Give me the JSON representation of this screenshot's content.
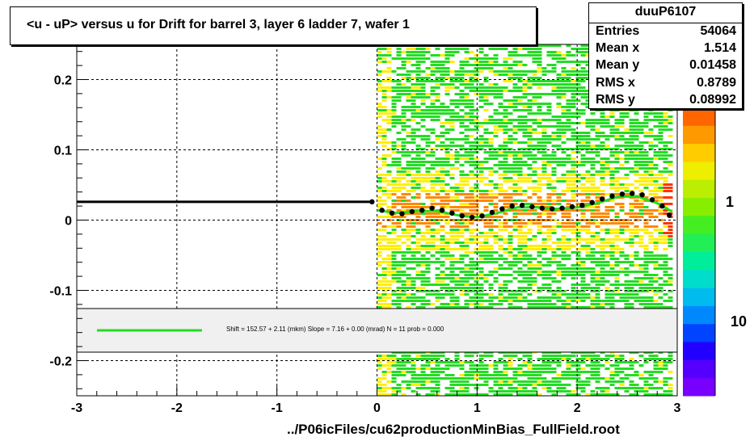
{
  "title": "<u - uP>       versus   u for Drift for barrel 3, layer 6 ladder 7, wafer 1",
  "stats": {
    "name": "duuP6107",
    "rows": [
      {
        "label": "Entries",
        "value": "54064"
      },
      {
        "label": "Mean x",
        "value": "1.514"
      },
      {
        "label": "Mean y",
        "value": "0.01458"
      },
      {
        "label": "RMS x",
        "value": "0.8789"
      },
      {
        "label": "RMS y",
        "value": "0.08992"
      }
    ]
  },
  "footer": "../P06icFiles/cu62productionMinBias_FullField.root",
  "fit_text": "Shift =    152.57 + 2.11 (mkm) Slope =     7.16 + 0.00 (mrad)  N = 11 prob = 0.000",
  "colors": {
    "frame": "#000000",
    "grid": "#000000",
    "profile": "#000000",
    "fit_line": "#22dd22",
    "fit_box_bg": "#f0f0f0",
    "hist_low": "#22dd22",
    "hist_mid": "#ffee00",
    "hist_high": "#ff8800",
    "hist_peak": "#ff3300"
  },
  "chart_data": {
    "type": "heatmap",
    "title": "<u - uP>       versus   u for Drift for barrel 3, layer 6 ladder 7, wafer 1",
    "xlabel": "",
    "ylabel": "",
    "xlim": [
      -3,
      3
    ],
    "ylim": [
      -0.25,
      0.25
    ],
    "x_ticks": [
      -3,
      -2,
      -1,
      0,
      1,
      2,
      3
    ],
    "y_ticks": [
      -0.2,
      -0.1,
      0,
      0.1,
      0.2
    ],
    "x_tick_labels": [
      "-3",
      "-2",
      "-1",
      "0",
      "1",
      "2",
      "3"
    ],
    "y_tick_labels": [
      "-0.2",
      "-0.1",
      "0",
      "0.1",
      "0.2"
    ],
    "grid": true,
    "heatmap_x_range": [
      0,
      2.95
    ],
    "colorbar_labels": [
      "1",
      "10"
    ],
    "profile_points": [
      {
        "x": -3.0,
        "y": 0.026
      },
      {
        "x": -0.05,
        "y": 0.026
      },
      {
        "x": 0.05,
        "y": 0.014
      },
      {
        "x": 0.15,
        "y": 0.01
      },
      {
        "x": 0.25,
        "y": 0.009
      },
      {
        "x": 0.35,
        "y": 0.012
      },
      {
        "x": 0.45,
        "y": 0.014
      },
      {
        "x": 0.55,
        "y": 0.017
      },
      {
        "x": 0.65,
        "y": 0.014
      },
      {
        "x": 0.75,
        "y": 0.01
      },
      {
        "x": 0.85,
        "y": 0.006
      },
      {
        "x": 0.95,
        "y": 0.004
      },
      {
        "x": 1.05,
        "y": 0.006
      },
      {
        "x": 1.15,
        "y": 0.011
      },
      {
        "x": 1.25,
        "y": 0.016
      },
      {
        "x": 1.35,
        "y": 0.02
      },
      {
        "x": 1.45,
        "y": 0.021
      },
      {
        "x": 1.55,
        "y": 0.019
      },
      {
        "x": 1.65,
        "y": 0.017
      },
      {
        "x": 1.75,
        "y": 0.016
      },
      {
        "x": 1.85,
        "y": 0.017
      },
      {
        "x": 1.95,
        "y": 0.019
      },
      {
        "x": 2.05,
        "y": 0.021
      },
      {
        "x": 2.15,
        "y": 0.025
      },
      {
        "x": 2.25,
        "y": 0.03
      },
      {
        "x": 2.35,
        "y": 0.034
      },
      {
        "x": 2.45,
        "y": 0.037
      },
      {
        "x": 2.55,
        "y": 0.038
      },
      {
        "x": 2.65,
        "y": 0.036
      },
      {
        "x": 2.75,
        "y": 0.029
      },
      {
        "x": 2.85,
        "y": 0.02
      },
      {
        "x": 2.92,
        "y": 0.007
      }
    ],
    "fit_curve": [
      {
        "x": 0.0,
        "y": 0.014
      },
      {
        "x": 0.2,
        "y": 0.01
      },
      {
        "x": 0.4,
        "y": 0.013
      },
      {
        "x": 0.6,
        "y": 0.013
      },
      {
        "x": 0.8,
        "y": 0.007
      },
      {
        "x": 1.0,
        "y": 0.004
      },
      {
        "x": 1.2,
        "y": 0.01
      },
      {
        "x": 1.4,
        "y": 0.018
      },
      {
        "x": 1.6,
        "y": 0.018
      },
      {
        "x": 1.8,
        "y": 0.016
      },
      {
        "x": 2.0,
        "y": 0.018
      },
      {
        "x": 2.2,
        "y": 0.024
      },
      {
        "x": 2.4,
        "y": 0.033
      },
      {
        "x": 2.6,
        "y": 0.034
      },
      {
        "x": 2.8,
        "y": 0.024
      },
      {
        "x": 2.95,
        "y": 0.012
      }
    ]
  }
}
